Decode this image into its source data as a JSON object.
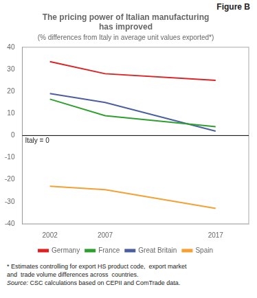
{
  "chart_data": {
    "type": "line",
    "figure_label": "Figure B",
    "title": [
      "The pricing power of Italian manufacturing",
      "has improved"
    ],
    "subtitle": "(% differences from Italy in average unit values exported*)",
    "x": [
      2002,
      2007,
      2017
    ],
    "series": [
      {
        "name": "Germany",
        "color": "#e02020",
        "values": [
          33.5,
          28.0,
          25.0
        ]
      },
      {
        "name": "France",
        "color": "#2ca02c",
        "values": [
          16.5,
          9.0,
          4.0
        ]
      },
      {
        "name": "Great Britain",
        "color": "#4a5fa0",
        "values": [
          19.0,
          15.0,
          2.0
        ]
      },
      {
        "name": "Spain",
        "color": "#f5a030",
        "values": [
          -23.0,
          -24.5,
          -33.0
        ]
      }
    ],
    "xlim": [
      1999.5,
      2020
    ],
    "xticks": [
      2002,
      2007,
      2017
    ],
    "ylim": [
      -40,
      40
    ],
    "yticks": [
      -40,
      -30,
      -20,
      -10,
      0,
      10,
      20,
      30,
      40
    ],
    "grid": false,
    "legend": "bottom",
    "annotations": [
      {
        "text": "Italy = 0",
        "y": 0
      }
    ],
    "footnotes": [
      "* Estimates controlling for export HS product code,  export market",
      "and  trade volume differences across  countries."
    ],
    "source": [
      "Source:",
      "CSC calculations based on CEPII and ComTrade data."
    ]
  }
}
